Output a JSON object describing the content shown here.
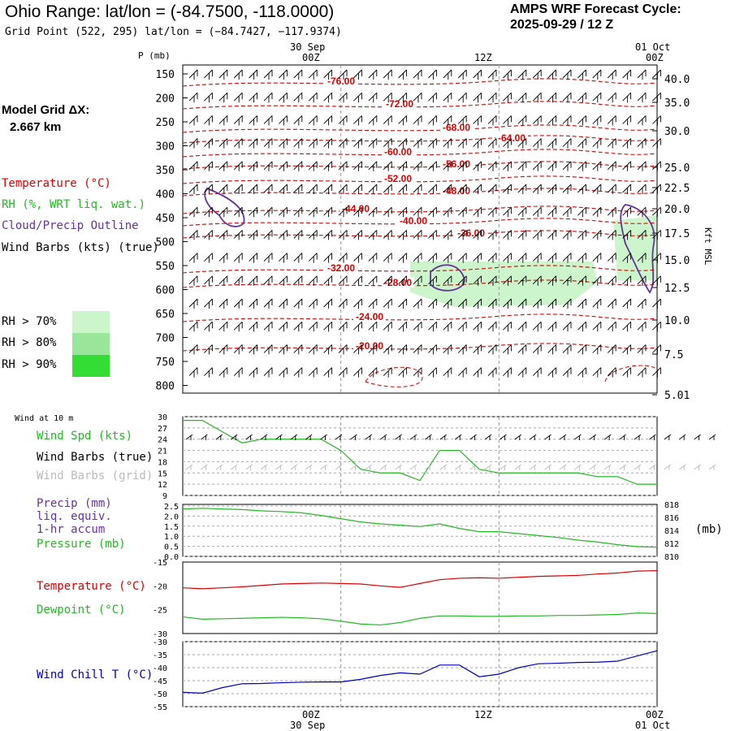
{
  "header": {
    "title": "Ohio Range:  lat/lon = (-84.7500, -118.0000)",
    "subtitle": "Grid Point (522, 295) lat/lon = (−84.7427, −117.9374)",
    "cycle_label": "AMPS WRF Forecast Cycle:",
    "cycle_value": "2025-09-29 / 12  Z"
  },
  "side": {
    "grid_label": "Model Grid ΔX:",
    "grid_value": "2.667 km",
    "leg_temp": "Temperature (°C)",
    "leg_rh": "RH (%, WRT liq. wat.)",
    "leg_cloud": "Cloud/Precip Outline",
    "leg_wind": "Wind Barbs (kts) (true)",
    "rh70": "RH > 70%",
    "rh80": "RH > 80%",
    "rh90": "RH > 90%",
    "wind10": "Wind at 10 m",
    "wspd": "Wind Spd (kts)",
    "wbt": "Wind Barbs (true)",
    "wbg": "Wind Barbs (grid)",
    "precip1": "Precip (mm)",
    "precip2": "liq. equiv.",
    "precip3": "1-hr accum",
    "pressure": "Pressure (mb)",
    "temp": "Temperature (°C)",
    "dew": "Dewpoint (°C)",
    "wchill": "Wind Chill T (°C)",
    "mb_unit": "(mb)",
    "p_unit": "P (mb)",
    "kft_unit": "Kft MSL"
  },
  "colors": {
    "temp": "#dd0000",
    "rh": "#22bb22",
    "cloud": "#663399",
    "wind": "#000000",
    "wind_grid": "#bbbbbb",
    "precip": "#663399",
    "wchill": "#0000bb",
    "rh70": "#ccf5cc",
    "rh80": "#99e599",
    "rh90": "#33dd33"
  },
  "time_axis": {
    "top_labels": [
      "30 Sep",
      "00Z",
      "12Z",
      "01 Oct",
      "00Z"
    ],
    "bottom_labels": [
      "00Z",
      "30 Sep",
      "12Z",
      "00Z",
      "01 Oct"
    ]
  },
  "chart_data": [
    {
      "type": "heatmap",
      "name": "Vertical cross-section",
      "pressure_ticks": [
        "150",
        "200",
        "250",
        "300",
        "350",
        "400",
        "450",
        "500",
        "550",
        "600",
        "650",
        "700",
        "750",
        "800"
      ],
      "height_ticks": [
        "40.0",
        "35.0",
        "30.0",
        "25.0",
        "22.5",
        "20.0",
        "17.5",
        "15.0",
        "12.5",
        "10.0",
        "7.5",
        "5.01"
      ],
      "temperature_contours": [
        "-76.00",
        "-72.00",
        "-68.00",
        "-64.00",
        "-60.00",
        "-56.00",
        "-52.00",
        "-48.00",
        "-44.00",
        "-40.00",
        "-36.00",
        "-32.00",
        "-28.00",
        "-24.00",
        "-20.00"
      ]
    },
    {
      "type": "line",
      "name": "Wind Spd (kts)",
      "yticks": [
        "30",
        "27",
        "24",
        "21",
        "18",
        "15",
        "12",
        "9"
      ],
      "ylim": [
        9,
        30
      ],
      "x_hours": [
        0,
        3,
        6,
        9,
        12,
        15,
        18,
        21,
        24,
        27,
        30,
        33,
        36,
        39,
        42,
        45,
        48,
        51,
        54,
        57,
        60,
        63,
        66,
        69,
        72
      ],
      "values": [
        29,
        29,
        26,
        23,
        24,
        24,
        24,
        24,
        21,
        16,
        15,
        15,
        13,
        21,
        21,
        16,
        15,
        15,
        15,
        15,
        15,
        14,
        14,
        12,
        12
      ]
    },
    {
      "type": "line",
      "name": "Precip / Pressure",
      "yticks_left": [
        "2.5",
        "2.0",
        "1.5",
        "1.0",
        "0.5",
        "0.0"
      ],
      "yticks_right": [
        "818",
        "816",
        "814",
        "812",
        "810"
      ],
      "ylim_right": [
        810,
        818
      ],
      "x_hours": [
        0,
        3,
        6,
        9,
        12,
        15,
        18,
        21,
        24,
        27,
        30,
        33,
        36,
        39,
        42,
        45,
        48,
        51,
        54,
        57,
        60,
        63,
        66,
        69,
        72
      ],
      "pressure": [
        817.3,
        817.4,
        817.3,
        817.2,
        817,
        816.9,
        816.7,
        816.3,
        815.8,
        815.3,
        815,
        814.8,
        814.6,
        815,
        814.3,
        813.8,
        813.8,
        813.5,
        813.2,
        812.9,
        812.5,
        812.2,
        811.8,
        811.5,
        811.4
      ]
    },
    {
      "type": "line",
      "name": "Temperature / Dewpoint",
      "yticks": [
        "-15",
        "-20",
        "-25",
        "-30"
      ],
      "ylim": [
        -30,
        -15
      ],
      "x_hours": [
        0,
        3,
        6,
        9,
        12,
        15,
        18,
        21,
        24,
        27,
        30,
        33,
        36,
        39,
        42,
        45,
        48,
        51,
        54,
        57,
        60,
        63,
        66,
        69,
        72
      ],
      "temperature": [
        -20.4,
        -20.6,
        -20.4,
        -20.2,
        -19.9,
        -19.6,
        -19.5,
        -19.4,
        -19.5,
        -19.6,
        -20,
        -20.3,
        -19.5,
        -18.7,
        -18.4,
        -18.3,
        -18.4,
        -18.2,
        -18.0,
        -17.9,
        -17.8,
        -17.5,
        -17.3,
        -16.9,
        -16.8
      ],
      "dewpoint": [
        -26.5,
        -27,
        -26.9,
        -26.8,
        -26.7,
        -26.6,
        -26.7,
        -26.9,
        -27.4,
        -28,
        -28.2,
        -27.7,
        -26.8,
        -26.3,
        -26.3,
        -26.4,
        -26.4,
        -26.3,
        -26.3,
        -26.2,
        -26.2,
        -26.1,
        -26,
        -25.7,
        -25.8
      ]
    },
    {
      "type": "line",
      "name": "Wind Chill T (°C)",
      "yticks": [
        "-30",
        "-35",
        "-40",
        "-45",
        "-50",
        "-55"
      ],
      "ylim": [
        -55,
        -30
      ],
      "x_hours": [
        0,
        3,
        6,
        9,
        12,
        15,
        18,
        21,
        24,
        27,
        30,
        33,
        36,
        39,
        42,
        45,
        48,
        51,
        54,
        57,
        60,
        63,
        66,
        69,
        72
      ],
      "values": [
        -49.5,
        -49.8,
        -47.7,
        -46.2,
        -46.1,
        -45.8,
        -45.6,
        -45.5,
        -45.5,
        -44.5,
        -43,
        -42,
        -42.5,
        -39,
        -39,
        -43.5,
        -42.5,
        -40,
        -38.5,
        -38.3,
        -38,
        -37.9,
        -37.5,
        -35.5,
        -33.5
      ]
    }
  ]
}
